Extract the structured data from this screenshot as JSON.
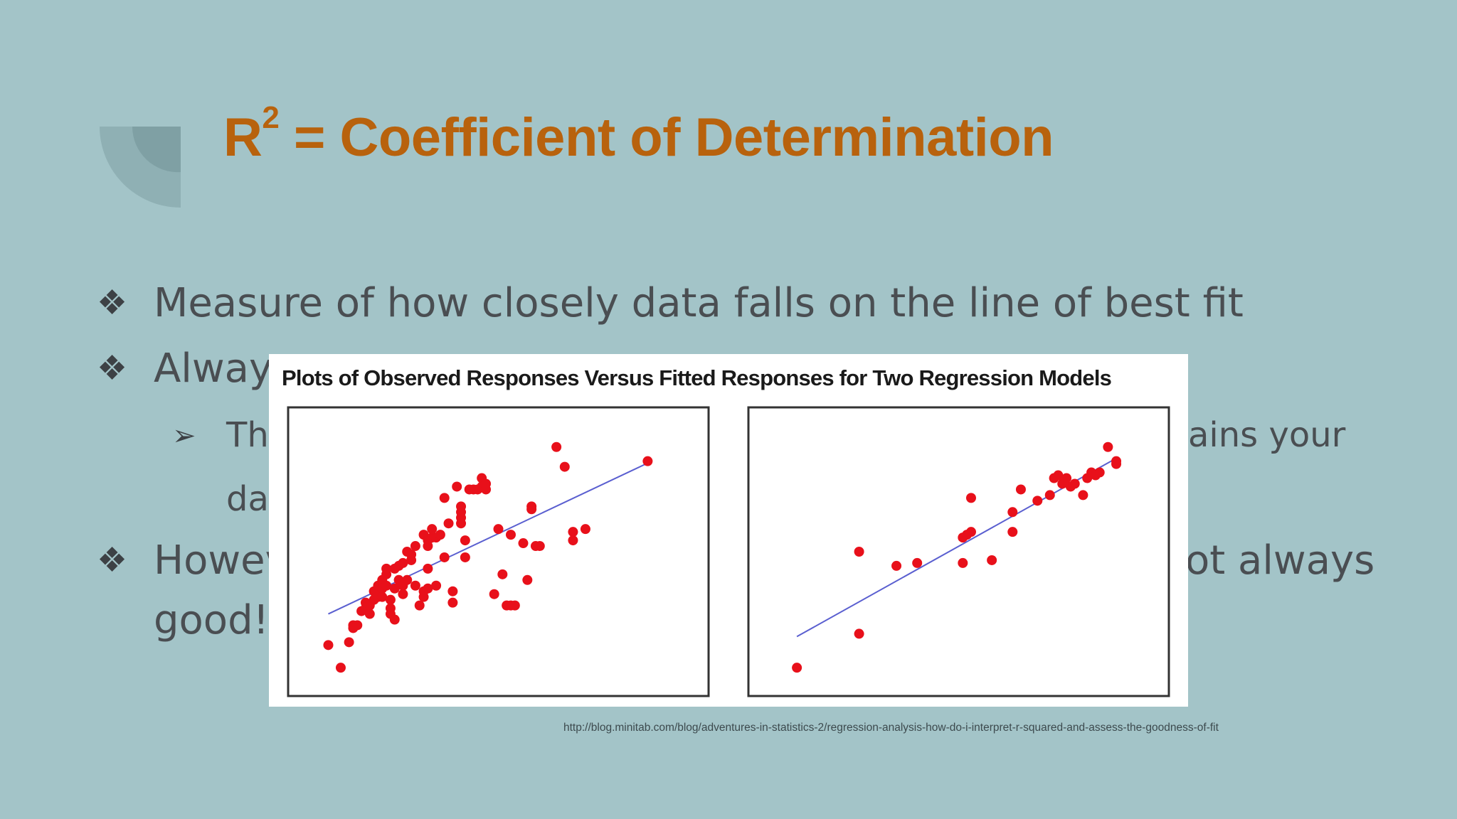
{
  "title": {
    "base": "R",
    "superscript": "2",
    "rest": " = Coefficient of Determination"
  },
  "bullets": [
    {
      "marker": "❖",
      "text": "Measure of how closely data falls on the line of best fit"
    },
    {
      "marker": "❖",
      "text": "Always"
    },
    {
      "marker": "➢",
      "text_left": "The",
      "text_right": "ains your"
    },
    {
      "marker": "",
      "text": "dat"
    },
    {
      "marker": "❖",
      "text_left": "Howev",
      "text_right": "ot always"
    },
    {
      "marker": "",
      "text": "good!"
    }
  ],
  "source": "http://blog.minitab.com/blog/adventures-in-statistics-2/regression-analysis-how-do-i-interpret-r-squared-and-assess-the-goodness-of-fit",
  "colors": {
    "title": "#b8620d",
    "points": "#e8101a",
    "fit_line": "#5a5fd0",
    "background": "#a3c4c8"
  },
  "chart_data": {
    "title": "Plots of Observed Responses Versus Fitted Responses for Two Regression Models",
    "panels": [
      {
        "type": "scatter",
        "x_range": [
          0,
          100
        ],
        "y_range": [
          0,
          100
        ],
        "fit_line": [
          [
            9,
            28
          ],
          [
            87,
            82
          ]
        ],
        "points": [
          [
            9,
            17
          ],
          [
            12,
            9
          ],
          [
            14,
            18
          ],
          [
            15,
            24
          ],
          [
            15,
            23
          ],
          [
            16,
            24
          ],
          [
            17,
            29
          ],
          [
            18,
            30
          ],
          [
            18,
            32
          ],
          [
            19,
            28
          ],
          [
            19,
            31
          ],
          [
            20,
            33
          ],
          [
            20,
            36
          ],
          [
            21,
            34
          ],
          [
            21,
            38
          ],
          [
            22,
            40
          ],
          [
            22,
            37
          ],
          [
            22,
            34
          ],
          [
            23,
            38
          ],
          [
            23,
            42
          ],
          [
            23,
            44
          ],
          [
            24,
            33
          ],
          [
            24,
            30
          ],
          [
            24,
            28
          ],
          [
            25,
            44
          ],
          [
            25,
            37
          ],
          [
            25,
            26
          ],
          [
            26,
            40
          ],
          [
            26,
            45
          ],
          [
            27,
            46
          ],
          [
            27,
            38
          ],
          [
            27,
            35
          ],
          [
            28,
            40
          ],
          [
            28,
            50
          ],
          [
            29,
            49
          ],
          [
            29,
            47
          ],
          [
            30,
            38
          ],
          [
            30,
            52
          ],
          [
            31,
            31
          ],
          [
            32,
            34
          ],
          [
            32,
            36
          ],
          [
            32,
            56
          ],
          [
            33,
            54
          ],
          [
            33,
            52
          ],
          [
            33,
            44
          ],
          [
            33,
            37
          ],
          [
            34,
            55
          ],
          [
            34,
            58
          ],
          [
            35,
            55
          ],
          [
            35,
            38
          ],
          [
            36,
            56
          ],
          [
            37,
            48
          ],
          [
            37,
            69
          ],
          [
            38,
            60
          ],
          [
            39,
            36
          ],
          [
            39,
            32
          ],
          [
            40,
            73
          ],
          [
            41,
            60
          ],
          [
            41,
            62
          ],
          [
            41,
            64
          ],
          [
            41,
            66
          ],
          [
            42,
            48
          ],
          [
            42,
            54
          ],
          [
            43,
            72
          ],
          [
            44,
            72
          ],
          [
            45,
            72
          ],
          [
            46,
            73
          ],
          [
            46,
            76
          ],
          [
            47,
            72
          ],
          [
            47,
            74
          ],
          [
            49,
            35
          ],
          [
            50,
            58
          ],
          [
            51,
            42
          ],
          [
            52,
            31
          ],
          [
            53,
            31
          ],
          [
            53,
            56
          ],
          [
            54,
            31
          ],
          [
            56,
            53
          ],
          [
            57,
            40
          ],
          [
            58,
            66
          ],
          [
            58,
            65
          ],
          [
            59,
            52
          ],
          [
            60,
            52
          ],
          [
            64,
            87
          ],
          [
            66,
            80
          ],
          [
            68,
            57
          ],
          [
            68,
            54
          ],
          [
            71,
            58
          ],
          [
            86,
            82
          ]
        ]
      },
      {
        "type": "scatter",
        "x_range": [
          0,
          100
        ],
        "y_range": [
          0,
          100
        ],
        "fit_line": [
          [
            11,
            20
          ],
          [
            88,
            83
          ]
        ],
        "points": [
          [
            11,
            9
          ],
          [
            26,
            21
          ],
          [
            26,
            50
          ],
          [
            35,
            45
          ],
          [
            40,
            46
          ],
          [
            51,
            55
          ],
          [
            51,
            46
          ],
          [
            52,
            56
          ],
          [
            53,
            57
          ],
          [
            53,
            69
          ],
          [
            58,
            47
          ],
          [
            63,
            57
          ],
          [
            63,
            64
          ],
          [
            65,
            72
          ],
          [
            69,
            68
          ],
          [
            72,
            70
          ],
          [
            73,
            76
          ],
          [
            74,
            77
          ],
          [
            75,
            74
          ],
          [
            76,
            76
          ],
          [
            77,
            73
          ],
          [
            78,
            74
          ],
          [
            80,
            70
          ],
          [
            81,
            76
          ],
          [
            82,
            78
          ],
          [
            83,
            77
          ],
          [
            84,
            78
          ],
          [
            86,
            87
          ],
          [
            88,
            81
          ],
          [
            88,
            82
          ]
        ]
      }
    ]
  }
}
